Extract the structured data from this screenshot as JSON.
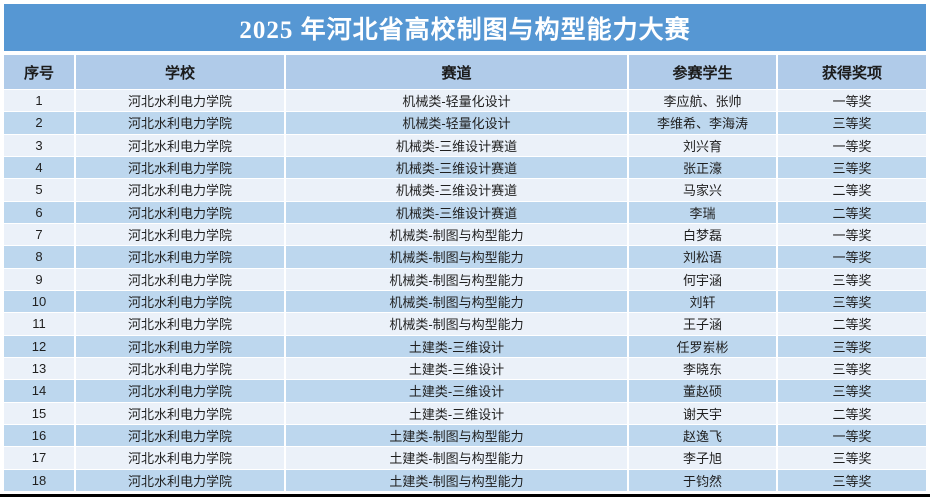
{
  "title": "2025 年河北省高校制图与构型能力大赛",
  "colors": {
    "title_bar_bg": "#5697d3",
    "title_text": "#ffffff",
    "header_bg": "#b0cbe9",
    "row_odd_bg": "#ebf1f9",
    "row_even_bg": "#bdd7ee",
    "grid_line": "#ffffff",
    "body_text": "#1f1f1f",
    "bottom_border": "#000000"
  },
  "table": {
    "headers": [
      "序号",
      "学校",
      "赛道",
      "参赛学生",
      "获得奖项"
    ],
    "column_keys": [
      "row-number",
      "school",
      "track",
      "students",
      "award"
    ],
    "rows": [
      [
        "1",
        "河北水利电力学院",
        "机械类-轻量化设计",
        "李应航、张帅",
        "一等奖"
      ],
      [
        "2",
        "河北水利电力学院",
        "机械类-轻量化设计",
        "李维希、李海涛",
        "三等奖"
      ],
      [
        "3",
        "河北水利电力学院",
        "机械类-三维设计赛道",
        "刘兴育",
        "一等奖"
      ],
      [
        "4",
        "河北水利电力学院",
        "机械类-三维设计赛道",
        "张正濠",
        "三等奖"
      ],
      [
        "5",
        "河北水利电力学院",
        "机械类-三维设计赛道",
        "马家兴",
        "二等奖"
      ],
      [
        "6",
        "河北水利电力学院",
        "机械类-三维设计赛道",
        "李瑞",
        "二等奖"
      ],
      [
        "7",
        "河北水利电力学院",
        "机械类-制图与构型能力",
        "白梦磊",
        "一等奖"
      ],
      [
        "8",
        "河北水利电力学院",
        "机械类-制图与构型能力",
        "刘松语",
        "一等奖"
      ],
      [
        "9",
        "河北水利电力学院",
        "机械类-制图与构型能力",
        "何宇涵",
        "三等奖"
      ],
      [
        "10",
        "河北水利电力学院",
        "机械类-制图与构型能力",
        "刘轩",
        "三等奖"
      ],
      [
        "11",
        "河北水利电力学院",
        "机械类-制图与构型能力",
        "王子涵",
        "二等奖"
      ],
      [
        "12",
        "河北水利电力学院",
        "土建类-三维设计",
        "任罗岽彬",
        "三等奖"
      ],
      [
        "13",
        "河北水利电力学院",
        "土建类-三维设计",
        "李晓东",
        "三等奖"
      ],
      [
        "14",
        "河北水利电力学院",
        "土建类-三维设计",
        "董赵硕",
        "三等奖"
      ],
      [
        "15",
        "河北水利电力学院",
        "土建类-三维设计",
        "谢天宇",
        "二等奖"
      ],
      [
        "16",
        "河北水利电力学院",
        "土建类-制图与构型能力",
        "赵逸飞",
        "一等奖"
      ],
      [
        "17",
        "河北水利电力学院",
        "土建类-制图与构型能力",
        "李子旭",
        "三等奖"
      ],
      [
        "18",
        "河北水利电力学院",
        "土建类-制图与构型能力",
        "于钧然",
        "三等奖"
      ]
    ]
  }
}
